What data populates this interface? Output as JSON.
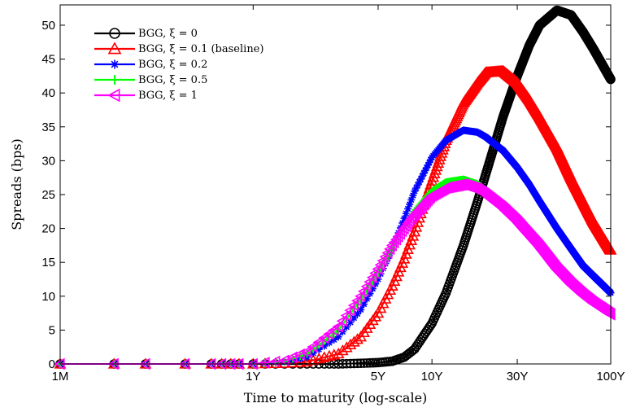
{
  "chart_data": {
    "type": "line",
    "xlabel": "Time to maturity (log-scale)",
    "ylabel": "Spreads (bps)",
    "x_scale": "log",
    "x_unit": "years",
    "xlim": [
      0.0833,
      100
    ],
    "ylim": [
      0,
      53
    ],
    "x_ticks": [
      {
        "value": 0.0833,
        "label": "1M"
      },
      {
        "value": 1,
        "label": "1Y"
      },
      {
        "value": 5,
        "label": "5Y"
      },
      {
        "value": 10,
        "label": "10Y"
      },
      {
        "value": 30,
        "label": "30Y"
      },
      {
        "value": 100,
        "label": "100Y"
      }
    ],
    "y_ticks": [
      0,
      5,
      10,
      15,
      20,
      25,
      30,
      35,
      40,
      45,
      50
    ],
    "legend_position": "top-left",
    "grid": false,
    "series": [
      {
        "name": "BGG, ξ = 0",
        "color": "#000000",
        "marker": "circle",
        "x": [
          0.0833,
          0.25,
          0.5,
          1,
          1.5,
          2,
          3,
          4,
          5,
          6,
          7,
          8,
          10,
          12,
          15,
          18,
          20,
          25,
          30,
          35,
          40,
          50,
          60,
          70,
          80,
          100
        ],
        "y": [
          0,
          0,
          0,
          0,
          0,
          0,
          0,
          0.1,
          0.2,
          0.4,
          1.0,
          2.2,
          6.0,
          10.5,
          17.5,
          24.0,
          28.0,
          36.5,
          42.5,
          47.0,
          50.0,
          52.2,
          51.5,
          49.0,
          46.5,
          42.0
        ]
      },
      {
        "name": "BGG, ξ = 0.1 (baseline)",
        "color": "#ff0000",
        "marker": "triangle-up",
        "x": [
          0.0833,
          0.25,
          0.5,
          1,
          1.5,
          2,
          3,
          4,
          5,
          6,
          7,
          8,
          10,
          12,
          15,
          18,
          20,
          25,
          30,
          35,
          40,
          50,
          60,
          70,
          80,
          100
        ],
        "y": [
          0,
          0,
          0,
          0,
          0.1,
          0.3,
          1.5,
          4.0,
          7.5,
          11.5,
          15.5,
          19.5,
          27.0,
          33.0,
          38.5,
          41.5,
          43.0,
          43.2,
          41.5,
          39.0,
          36.5,
          32.0,
          27.5,
          24.0,
          21.0,
          16.8
        ]
      },
      {
        "name": "BGG, ξ = 0.2",
        "color": "#0000ff",
        "marker": "star",
        "x": [
          0.0833,
          0.25,
          0.5,
          1,
          1.5,
          2,
          3,
          4,
          5,
          6,
          7,
          8,
          10,
          12,
          15,
          18,
          20,
          25,
          30,
          35,
          40,
          50,
          60,
          70,
          80,
          100
        ],
        "y": [
          0,
          0,
          0,
          0,
          0.3,
          1.0,
          4.0,
          8.0,
          12.5,
          17.0,
          21.5,
          25.5,
          30.5,
          33.0,
          34.5,
          34.2,
          33.5,
          31.5,
          29.0,
          26.5,
          24.0,
          20.0,
          17.0,
          14.5,
          13.0,
          10.5
        ]
      },
      {
        "name": "BGG, ξ = 0.5",
        "color": "#00ff00",
        "marker": "plus",
        "x": [
          0.0833,
          0.25,
          0.5,
          1,
          1.5,
          2,
          3,
          4,
          5,
          6,
          7,
          8,
          10,
          12,
          15,
          18,
          20,
          25,
          30,
          35,
          40,
          50,
          60,
          70,
          80,
          100
        ],
        "y": [
          0,
          0,
          0,
          0,
          0.4,
          1.5,
          5.0,
          9.5,
          13.5,
          17.0,
          20.0,
          22.5,
          25.5,
          26.8,
          27.2,
          26.5,
          25.5,
          23.5,
          21.5,
          19.5,
          17.8,
          14.5,
          12.3,
          10.6,
          9.4,
          7.7
        ]
      },
      {
        "name": "BGG, ξ = 1",
        "color": "#ff00ff",
        "marker": "triangle-left",
        "x": [
          0.0833,
          0.25,
          0.5,
          1,
          1.5,
          2,
          3,
          4,
          5,
          6,
          7,
          8,
          10,
          12,
          15,
          18,
          20,
          25,
          30,
          35,
          40,
          50,
          60,
          70,
          80,
          100
        ],
        "y": [
          0,
          0,
          0,
          0,
          0.5,
          1.8,
          5.5,
          10.0,
          14.0,
          17.5,
          20.0,
          22.0,
          24.8,
          26.0,
          26.5,
          25.8,
          25.0,
          23.0,
          21.0,
          19.0,
          17.3,
          14.0,
          11.8,
          10.2,
          9.0,
          7.3
        ]
      }
    ]
  }
}
